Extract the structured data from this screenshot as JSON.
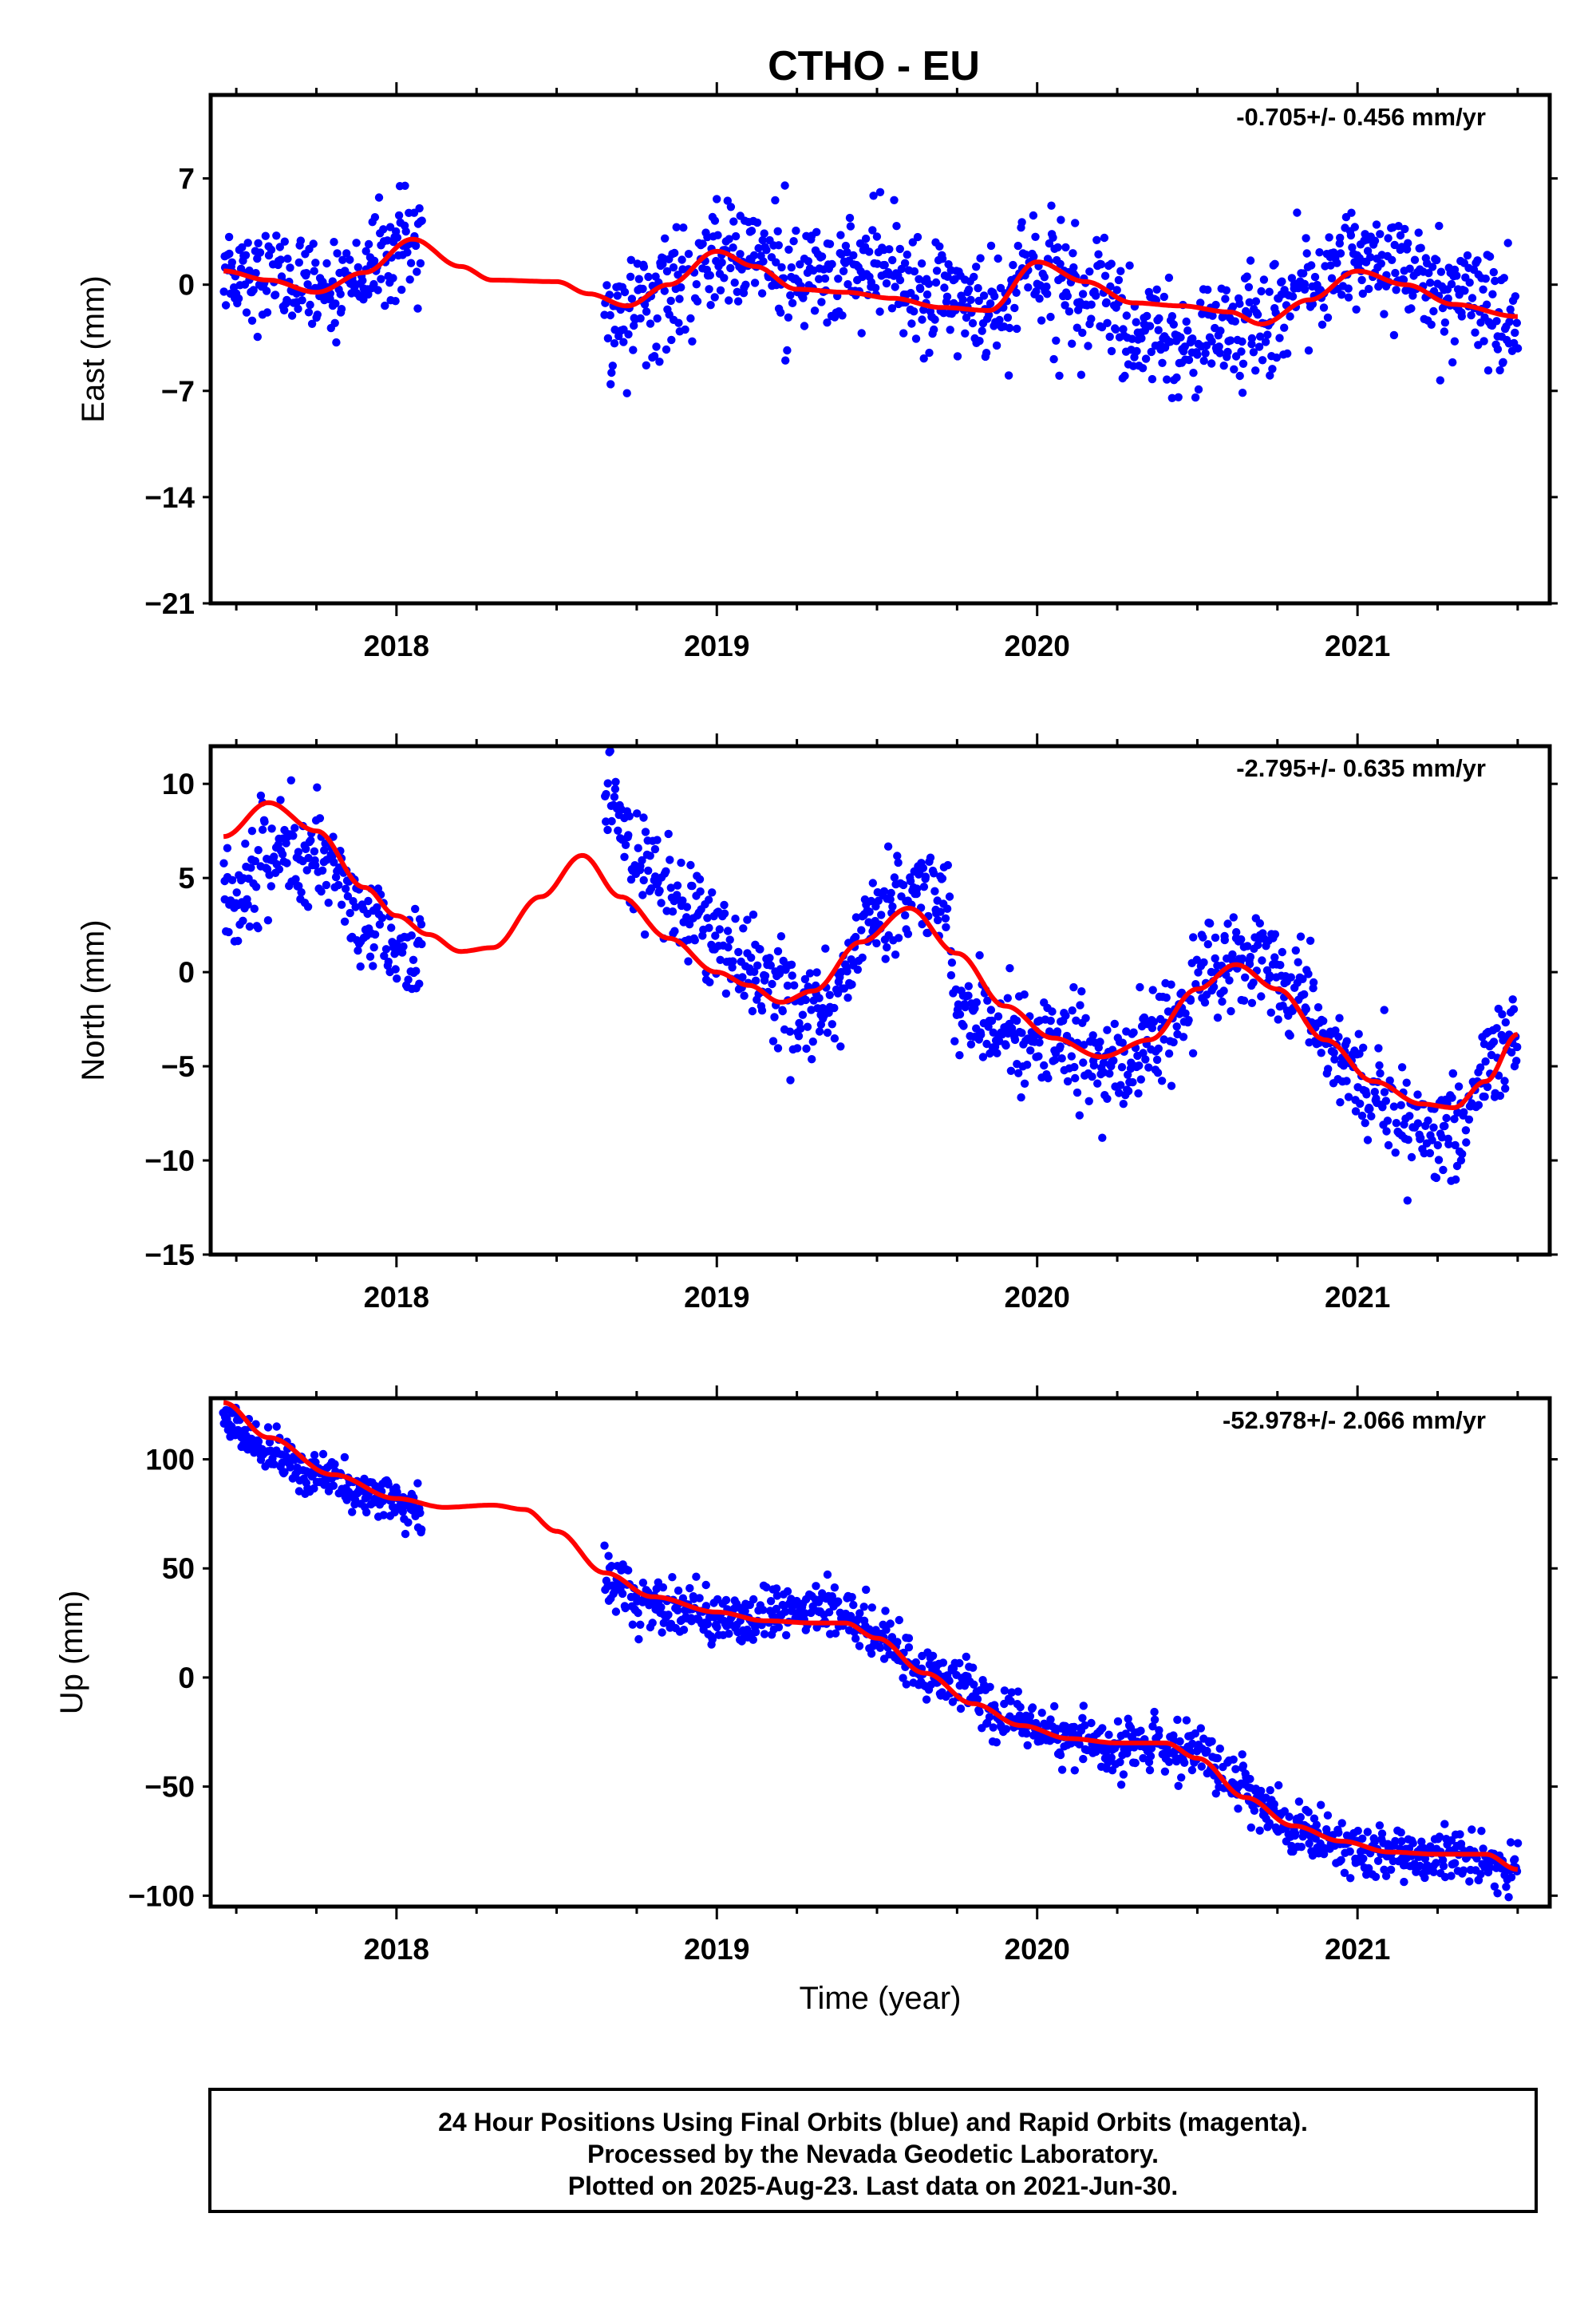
{
  "chart_data": [
    {
      "type": "scatter",
      "title": "CTHO - EU",
      "ylabel": "East (mm)",
      "xlabel": "",
      "xlim": [
        2017.42,
        2021.6
      ],
      "ylim": [
        -21,
        12.5
      ],
      "x_ticks": [
        2018,
        2019,
        2020,
        2021
      ],
      "y_ticks": [
        7,
        0,
        -7,
        -14,
        -21
      ],
      "rate_text": "-0.705+/- 0.456 mm/yr",
      "grid": false,
      "series": [
        {
          "color": "#0000ff",
          "marker": "dot",
          "segments": [
            {
              "start": 2017.46,
              "end": 2018.08,
              "keys": [
                [
                  2017.46,
                  1.2
                ],
                [
                  2017.6,
                  0.3
                ],
                [
                  2017.75,
                  -0.8
                ],
                [
                  2017.9,
                  1.0
                ],
                [
                  2018.03,
                  2.9
                ],
                [
                  2018.08,
                  2.0
                ]
              ],
              "noise": 1.6
            },
            {
              "start": 2018.65,
              "end": 2021.5,
              "keys": [
                [
                  2018.65,
                  -2.0
                ],
                [
                  2018.8,
                  -1.2
                ],
                [
                  2019.0,
                  2.2
                ],
                [
                  2019.2,
                  0.7
                ],
                [
                  2019.5,
                  0.8
                ],
                [
                  2019.7,
                  -1.2
                ],
                [
                  2019.85,
                  -1.5
                ],
                [
                  2020.0,
                  1.2
                ],
                [
                  2020.15,
                  -0.6
                ],
                [
                  2020.3,
                  -3.0
                ],
                [
                  2020.5,
                  -4.0
                ],
                [
                  2020.6,
                  -3.2
                ],
                [
                  2020.72,
                  -2.0
                ],
                [
                  2020.85,
                  0.2
                ],
                [
                  2021.0,
                  2.6
                ],
                [
                  2021.15,
                  0.5
                ],
                [
                  2021.3,
                  -1.0
                ],
                [
                  2021.5,
                  -2.5
                ]
              ],
              "noise": 1.9
            }
          ]
        },
        {
          "color": "#ff0000",
          "line": true,
          "points": [
            [
              2017.46,
              0.9
            ],
            [
              2017.6,
              0.3
            ],
            [
              2017.75,
              -0.5
            ],
            [
              2017.9,
              0.8
            ],
            [
              2018.05,
              3.0
            ],
            [
              2018.2,
              1.2
            ],
            [
              2018.3,
              0.3
            ],
            [
              2018.5,
              0.2
            ],
            [
              2018.6,
              -0.6
            ],
            [
              2018.72,
              -1.4
            ],
            [
              2018.85,
              0.0
            ],
            [
              2019.0,
              2.2
            ],
            [
              2019.12,
              1.2
            ],
            [
              2019.25,
              -0.3
            ],
            [
              2019.4,
              -0.5
            ],
            [
              2019.55,
              -0.9
            ],
            [
              2019.7,
              -1.5
            ],
            [
              2019.85,
              -1.7
            ],
            [
              2020.0,
              1.5
            ],
            [
              2020.15,
              0.2
            ],
            [
              2020.3,
              -1.2
            ],
            [
              2020.45,
              -1.4
            ],
            [
              2020.6,
              -1.8
            ],
            [
              2020.7,
              -2.6
            ],
            [
              2020.85,
              -1.0
            ],
            [
              2021.0,
              0.9
            ],
            [
              2021.15,
              0.0
            ],
            [
              2021.3,
              -1.3
            ],
            [
              2021.5,
              -2.1
            ]
          ]
        }
      ]
    },
    {
      "type": "scatter",
      "title": "",
      "ylabel": "North (mm)",
      "xlabel": "",
      "xlim": [
        2017.42,
        2021.6
      ],
      "ylim": [
        -15,
        12
      ],
      "x_ticks": [
        2018,
        2019,
        2020,
        2021
      ],
      "y_ticks": [
        10,
        5,
        0,
        -5,
        -10,
        -15
      ],
      "rate_text": "-2.795+/- 0.635 mm/yr",
      "grid": false,
      "series": [
        {
          "color": "#0000ff",
          "marker": "dot",
          "segments": [
            {
              "start": 2017.46,
              "end": 2018.08,
              "keys": [
                [
                  2017.46,
                  3.5
                ],
                [
                  2017.6,
                  6.0
                ],
                [
                  2017.7,
                  6.5
                ],
                [
                  2017.8,
                  5.5
                ],
                [
                  2017.9,
                  2.0
                ],
                [
                  2018.08,
                  1.0
                ]
              ],
              "noise": 1.3
            },
            {
              "start": 2018.65,
              "end": 2021.5,
              "keys": [
                [
                  2018.65,
                  10.0
                ],
                [
                  2018.75,
                  5.5
                ],
                [
                  2018.9,
                  3.0
                ],
                [
                  2019.1,
                  0.5
                ],
                [
                  2019.25,
                  -1.5
                ],
                [
                  2019.35,
                  -1.5
                ],
                [
                  2019.5,
                  3.0
                ],
                [
                  2019.6,
                  4.5
                ],
                [
                  2019.72,
                  3.5
                ],
                [
                  2019.75,
                  -2.0
                ],
                [
                  2019.9,
                  -3.0
                ],
                [
                  2020.1,
                  -4.0
                ],
                [
                  2020.25,
                  -5.5
                ],
                [
                  2020.4,
                  -3.0
                ],
                [
                  2020.55,
                  0.5
                ],
                [
                  2020.7,
                  0.5
                ],
                [
                  2020.8,
                  -1.0
                ],
                [
                  2020.9,
                  -4.0
                ],
                [
                  2021.05,
                  -6.5
                ],
                [
                  2021.2,
                  -8.0
                ],
                [
                  2021.3,
                  -8.5
                ],
                [
                  2021.4,
                  -5.0
                ],
                [
                  2021.5,
                  -2.5
                ]
              ],
              "noise": 1.3
            }
          ]
        },
        {
          "color": "#ff0000",
          "line": true,
          "points": [
            [
              2017.46,
              7.2
            ],
            [
              2017.6,
              9.0
            ],
            [
              2017.75,
              7.5
            ],
            [
              2017.9,
              4.5
            ],
            [
              2018.0,
              3.0
            ],
            [
              2018.1,
              2.0
            ],
            [
              2018.2,
              1.1
            ],
            [
              2018.3,
              1.3
            ],
            [
              2018.45,
              4.0
            ],
            [
              2018.58,
              6.2
            ],
            [
              2018.7,
              4.0
            ],
            [
              2018.85,
              1.8
            ],
            [
              2019.0,
              0.0
            ],
            [
              2019.1,
              -0.7
            ],
            [
              2019.2,
              -1.6
            ],
            [
              2019.3,
              -1.0
            ],
            [
              2019.45,
              1.6
            ],
            [
              2019.6,
              3.4
            ],
            [
              2019.75,
              1.0
            ],
            [
              2019.9,
              -1.8
            ],
            [
              2020.05,
              -3.5
            ],
            [
              2020.2,
              -4.5
            ],
            [
              2020.35,
              -3.6
            ],
            [
              2020.5,
              -0.9
            ],
            [
              2020.62,
              0.4
            ],
            [
              2020.75,
              -0.9
            ],
            [
              2020.9,
              -3.6
            ],
            [
              2021.05,
              -5.8
            ],
            [
              2021.2,
              -7.0
            ],
            [
              2021.3,
              -7.2
            ],
            [
              2021.4,
              -5.8
            ],
            [
              2021.5,
              -3.3
            ]
          ]
        }
      ]
    },
    {
      "type": "scatter",
      "title": "",
      "ylabel": "Up (mm)",
      "xlabel": "Time (year)",
      "xlim": [
        2017.42,
        2021.6
      ],
      "ylim": [
        -105,
        128
      ],
      "x_ticks": [
        2018,
        2019,
        2020,
        2021
      ],
      "y_ticks": [
        100,
        50,
        0,
        -50,
        -100
      ],
      "rate_text": "-52.978+/- 2.066 mm/yr",
      "grid": false,
      "series": [
        {
          "color": "#0000ff",
          "marker": "dot",
          "segments": [
            {
              "start": 2017.46,
              "end": 2018.08,
              "keys": [
                [
                  2017.46,
                  118
                ],
                [
                  2017.6,
                  105
                ],
                [
                  2017.75,
                  95
                ],
                [
                  2017.9,
                  85
                ],
                [
                  2018.08,
                  76
                ]
              ],
              "noise": 5
            },
            {
              "start": 2018.65,
              "end": 2021.5,
              "keys": [
                [
                  2018.65,
                  46
                ],
                [
                  2018.8,
                  34
                ],
                [
                  2019.0,
                  28
                ],
                [
                  2019.2,
                  30
                ],
                [
                  2019.4,
                  32
                ],
                [
                  2019.5,
                  20
                ],
                [
                  2019.7,
                  0
                ],
                [
                  2019.9,
                  -18
                ],
                [
                  2020.1,
                  -28
                ],
                [
                  2020.3,
                  -32
                ],
                [
                  2020.5,
                  -35
                ],
                [
                  2020.62,
                  -45
                ],
                [
                  2020.72,
                  -62
                ],
                [
                  2020.8,
                  -70
                ],
                [
                  2020.95,
                  -78
                ],
                [
                  2021.1,
                  -82
                ],
                [
                  2021.3,
                  -82
                ],
                [
                  2021.5,
                  -86
                ]
              ],
              "noise": 6
            }
          ]
        },
        {
          "color": "#ff0000",
          "line": true,
          "points": [
            [
              2017.46,
              126
            ],
            [
              2017.6,
              110
            ],
            [
              2017.8,
              93
            ],
            [
              2018.0,
              82
            ],
            [
              2018.15,
              78
            ],
            [
              2018.3,
              79
            ],
            [
              2018.4,
              77
            ],
            [
              2018.5,
              67
            ],
            [
              2018.65,
              48
            ],
            [
              2018.8,
              37
            ],
            [
              2019.0,
              30
            ],
            [
              2019.15,
              26
            ],
            [
              2019.3,
              25
            ],
            [
              2019.4,
              25
            ],
            [
              2019.5,
              18
            ],
            [
              2019.65,
              2
            ],
            [
              2019.8,
              -12
            ],
            [
              2019.95,
              -22
            ],
            [
              2020.1,
              -28
            ],
            [
              2020.25,
              -30
            ],
            [
              2020.4,
              -30
            ],
            [
              2020.5,
              -37
            ],
            [
              2020.65,
              -55
            ],
            [
              2020.8,
              -68
            ],
            [
              2020.95,
              -75
            ],
            [
              2021.1,
              -80
            ],
            [
              2021.25,
              -81
            ],
            [
              2021.4,
              -81
            ],
            [
              2021.5,
              -88
            ]
          ]
        }
      ]
    }
  ],
  "footer": {
    "line1": "24 Hour Positions Using Final Orbits (blue) and Rapid Orbits (magenta).",
    "line2": "Processed by the Nevada Geodetic Laboratory.",
    "line3": "Plotted on 2025-Aug-23. Last data on 2021-Jun-30."
  }
}
